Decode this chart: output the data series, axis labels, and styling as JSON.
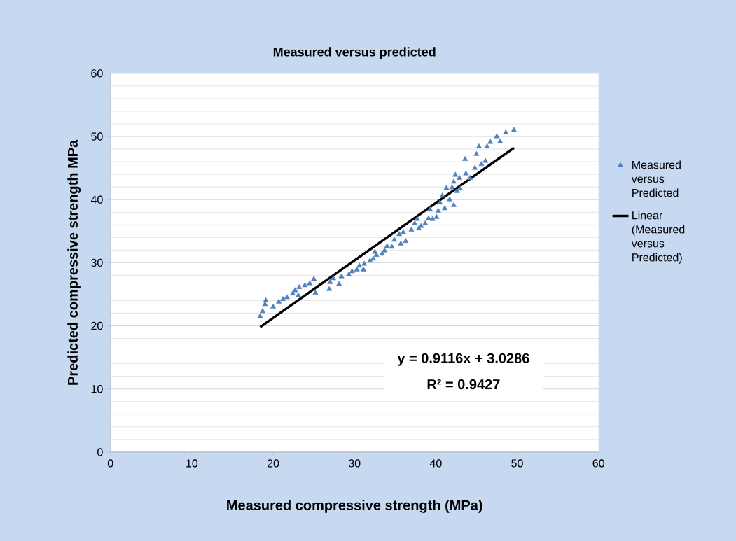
{
  "chart_data": {
    "type": "scatter",
    "title": "Measured versus predicted",
    "xlabel": "Measured compressive strength (MPa)",
    "ylabel": "Predicted compressive strength MPa",
    "series": [
      {
        "name": "Measured versus Predicted",
        "color": "#4f81bd",
        "marker": "triangle",
        "x": [
          18.4,
          18.7,
          19.0,
          19.1,
          20.0,
          20.7,
          21.2,
          21.7,
          22.4,
          22.7,
          23.1,
          23.2,
          23.9,
          24.5,
          25.0,
          25.2,
          26.9,
          27.0,
          27.4,
          28.1,
          28.4,
          29.3,
          29.7,
          30.3,
          30.6,
          31.1,
          31.2,
          31.9,
          32.3,
          32.5,
          32.7,
          33.4,
          33.7,
          34.0,
          34.6,
          34.9,
          35.5,
          35.7,
          36.0,
          36.3,
          37.0,
          37.4,
          37.7,
          37.9,
          38.2,
          38.7,
          39.1,
          39.3,
          39.6,
          40.1,
          40.3,
          40.5,
          40.8,
          41.1,
          41.3,
          41.7,
          42.0,
          42.2,
          42.2,
          42.4,
          42.6,
          42.9,
          43.0,
          43.6,
          43.7,
          44.2,
          44.8,
          45.0,
          45.3,
          45.6,
          46.1,
          46.3,
          46.7,
          47.5,
          47.9,
          48.6,
          49.6
        ],
        "values": [
          21.5,
          22.3,
          23.4,
          24.0,
          23.0,
          23.8,
          24.2,
          24.5,
          25.1,
          25.6,
          24.8,
          26.1,
          26.4,
          26.7,
          27.4,
          25.2,
          25.8,
          26.9,
          27.5,
          26.6,
          27.8,
          28.1,
          28.6,
          28.9,
          29.5,
          28.9,
          29.8,
          30.3,
          30.6,
          31.7,
          31.2,
          31.4,
          31.9,
          32.6,
          32.5,
          33.6,
          34.5,
          33.0,
          34.8,
          33.4,
          35.2,
          36.2,
          36.9,
          35.4,
          35.8,
          36.2,
          37.0,
          38.4,
          36.9,
          37.2,
          38.2,
          39.5,
          40.6,
          38.6,
          41.8,
          40.0,
          41.9,
          42.8,
          39.1,
          43.9,
          41.3,
          43.4,
          41.7,
          46.4,
          44.1,
          43.4,
          45.0,
          47.2,
          48.4,
          45.6,
          46.1,
          48.4,
          49.1,
          50.0,
          49.2,
          50.6,
          51.0
        ]
      },
      {
        "name": "Linear (Measured versus Predicted)",
        "type": "line",
        "color": "#000000",
        "line_style": "solid",
        "x": [
          18.4,
          49.6
        ],
        "values": [
          19.8,
          48.2
        ]
      }
    ],
    "annotations": [
      "y = 0.9116x + 3.0286",
      "R² = 0.9427"
    ],
    "xlim": [
      0,
      60
    ],
    "ylim": [
      0,
      60
    ],
    "xticks": [
      0,
      10,
      20,
      30,
      40,
      50,
      60
    ],
    "yticks": [
      0,
      10,
      20,
      30,
      40,
      50,
      60
    ],
    "grid": "y",
    "legend": "right"
  }
}
